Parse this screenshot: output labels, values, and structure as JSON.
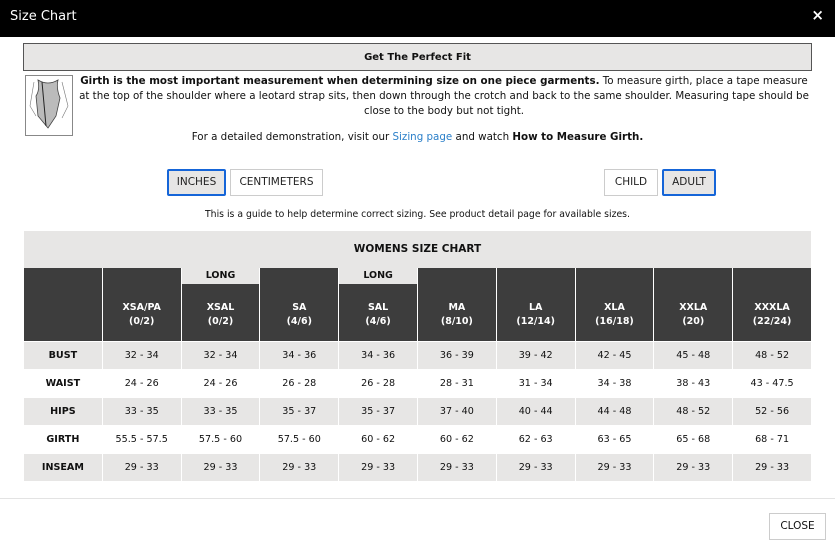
{
  "modal": {
    "title": "Size Chart",
    "close_icon": "×",
    "close_label": "CLOSE"
  },
  "fit": {
    "heading": "Get The Perfect Fit",
    "desc_bold": "Girth is the most important measurement when determining size on one piece garments.",
    "desc_rest": " To measure girth, place a tape measure at the top of the shoulder where a leotard strap sits, then down through the crotch and back to the same shoulder. Measuring tape should be close to the body but not tight.",
    "demo_pre": "For a detailed demonstration, visit our ",
    "demo_link": "Sizing page",
    "demo_mid": " and watch ",
    "demo_bold": "How to Measure Girth."
  },
  "units": {
    "inches": "INCHES",
    "centimeters": "CENTIMETERS",
    "selected": "INCHES"
  },
  "group": {
    "child": "CHILD",
    "adult": "ADULT",
    "selected": "ADULT"
  },
  "guide": "This is a guide to help determine correct sizing. See product detail page for available sizes.",
  "accent": "#1565d8",
  "table": {
    "title": "WOMENS SIZE CHART",
    "columns": [
      {
        "long": "",
        "name": "XSA/PA",
        "size": "(0/2)"
      },
      {
        "long": "LONG",
        "name": "XSAL",
        "size": "(0/2)"
      },
      {
        "long": "",
        "name": "SA",
        "size": "(4/6)"
      },
      {
        "long": "LONG",
        "name": "SAL",
        "size": "(4/6)"
      },
      {
        "long": "",
        "name": "MA",
        "size": "(8/10)"
      },
      {
        "long": "",
        "name": "LA",
        "size": "(12/14)"
      },
      {
        "long": "",
        "name": "XLA",
        "size": "(16/18)"
      },
      {
        "long": "",
        "name": "XXLA",
        "size": "(20)"
      },
      {
        "long": "",
        "name": "XXXLA",
        "size": "(22/24)"
      }
    ],
    "rows": [
      {
        "label": "BUST",
        "values": [
          "32 - 34",
          "32 - 34",
          "34 - 36",
          "34 - 36",
          "36 - 39",
          "39 - 42",
          "42 - 45",
          "45 - 48",
          "48 - 52"
        ]
      },
      {
        "label": "WAIST",
        "values": [
          "24 - 26",
          "24 - 26",
          "26 - 28",
          "26 - 28",
          "28 - 31",
          "31 - 34",
          "34 - 38",
          "38 - 43",
          "43 - 47.5"
        ]
      },
      {
        "label": "HIPS",
        "values": [
          "33 - 35",
          "33 - 35",
          "35 - 37",
          "35 - 37",
          "37 - 40",
          "40 - 44",
          "44 - 48",
          "48 - 52",
          "52 - 56"
        ]
      },
      {
        "label": "GIRTH",
        "values": [
          "55.5 - 57.5",
          "57.5 - 60",
          "57.5 - 60",
          "60 - 62",
          "60 - 62",
          "62 - 63",
          "63 - 65",
          "65 - 68",
          "68 - 71"
        ]
      },
      {
        "label": "INSEAM",
        "values": [
          "29 - 33",
          "29 - 33",
          "29 - 33",
          "29 - 33",
          "29 - 33",
          "29 - 33",
          "29 - 33",
          "29 - 33",
          "29 - 33"
        ]
      }
    ]
  }
}
